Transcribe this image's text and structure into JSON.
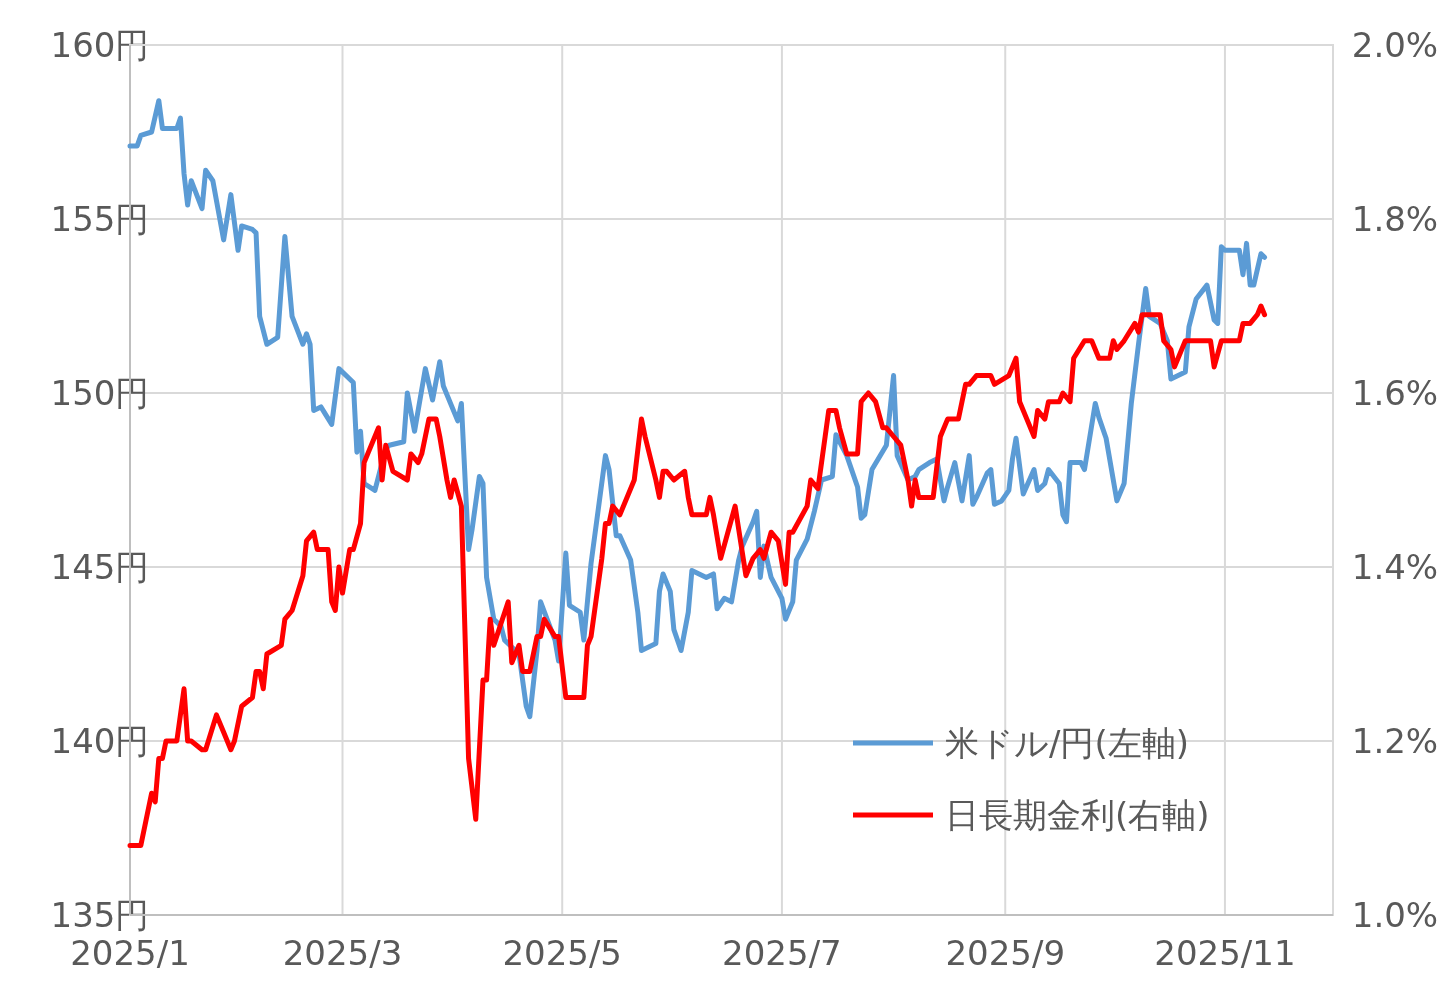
{
  "chart_data": {
    "type": "line",
    "xlim": [
      "2025-01-01",
      "2025-12-01"
    ],
    "xticks": [
      {
        "value": "2025-01-01",
        "label": "2025/1"
      },
      {
        "value": "2025-03-01",
        "label": "2025/3"
      },
      {
        "value": "2025-05-01",
        "label": "2025/5"
      },
      {
        "value": "2025-07-01",
        "label": "2025/7"
      },
      {
        "value": "2025-09-01",
        "label": "2025/9"
      },
      {
        "value": "2025-11-01",
        "label": "2025/11"
      }
    ],
    "ylim": [
      135,
      160
    ],
    "yticks": [
      {
        "value": 135,
        "label": "135円"
      },
      {
        "value": 140,
        "label": "140円"
      },
      {
        "value": 145,
        "label": "145円"
      },
      {
        "value": 150,
        "label": "150円"
      },
      {
        "value": 155,
        "label": "155円"
      },
      {
        "value": 160,
        "label": "160円"
      }
    ],
    "y2lim": [
      1.0,
      2.0
    ],
    "y2ticks": [
      {
        "value": 1.0,
        "label": "1.0%"
      },
      {
        "value": 1.2,
        "label": "1.2%"
      },
      {
        "value": 1.4,
        "label": "1.4%"
      },
      {
        "value": 1.6,
        "label": "1.6%"
      },
      {
        "value": 1.8,
        "label": "1.8%"
      },
      {
        "value": 2.0,
        "label": "2.0%"
      }
    ],
    "grid": true,
    "legend": "bottom right",
    "series": [
      {
        "name": "米ドル/円(左軸)",
        "color": "#5b9bd5",
        "x": [
          "2025-01-01",
          "2025-01-03",
          "2025-01-04",
          "2025-01-07",
          "2025-01-09",
          "2025-01-10",
          "2025-01-14",
          "2025-01-15",
          "2025-01-16",
          "2025-01-17",
          "2025-01-18",
          "2025-01-21",
          "2025-01-22",
          "2025-01-24",
          "2025-01-27",
          "2025-01-29",
          "2025-01-31",
          "2025-02-01",
          "2025-02-04",
          "2025-02-05",
          "2025-02-06",
          "2025-02-08",
          "2025-02-11",
          "2025-02-13",
          "2025-02-15",
          "2025-02-18",
          "2025-02-19",
          "2025-02-20",
          "2025-02-21",
          "2025-02-23",
          "2025-02-26",
          "2025-02-28",
          "2025-03-04",
          "2025-03-05",
          "2025-03-06",
          "2025-03-07",
          "2025-03-10",
          "2025-03-13",
          "2025-03-14",
          "2025-03-18",
          "2025-03-19",
          "2025-03-21",
          "2025-03-24",
          "2025-03-26",
          "2025-03-28",
          "2025-03-29",
          "2025-04-02",
          "2025-04-03",
          "2025-04-05",
          "2025-04-06",
          "2025-04-08",
          "2025-04-09",
          "2025-04-10",
          "2025-04-12",
          "2025-04-14",
          "2025-04-15",
          "2025-04-19",
          "2025-04-21",
          "2025-04-22",
          "2025-04-24",
          "2025-04-25",
          "2025-04-29",
          "2025-04-30",
          "2025-05-02",
          "2025-05-03",
          "2025-05-06",
          "2025-05-07",
          "2025-05-09",
          "2025-05-13",
          "2025-05-14",
          "2025-05-16",
          "2025-05-17",
          "2025-05-20",
          "2025-05-22",
          "2025-05-23",
          "2025-05-27",
          "2025-05-28",
          "2025-05-29",
          "2025-05-31",
          "2025-06-01",
          "2025-06-03",
          "2025-06-05",
          "2025-06-06",
          "2025-06-10",
          "2025-06-12",
          "2025-06-13",
          "2025-06-15",
          "2025-06-17",
          "2025-06-19",
          "2025-06-20",
          "2025-06-23",
          "2025-06-24",
          "2025-06-25",
          "2025-06-26",
          "2025-06-28",
          "2025-07-01",
          "2025-07-02",
          "2025-07-04",
          "2025-07-05",
          "2025-07-08",
          "2025-07-10",
          "2025-07-12",
          "2025-07-15",
          "2025-07-16",
          "2025-07-19",
          "2025-07-22",
          "2025-07-23",
          "2025-07-24",
          "2025-07-26",
          "2025-07-30",
          "2025-08-01",
          "2025-08-02",
          "2025-08-05",
          "2025-08-07",
          "2025-08-08",
          "2025-08-11",
          "2025-08-13",
          "2025-08-15",
          "2025-08-16",
          "2025-08-18",
          "2025-08-20",
          "2025-08-22",
          "2025-08-23",
          "2025-08-24",
          "2025-08-27",
          "2025-08-28",
          "2025-08-29",
          "2025-08-31",
          "2025-09-02",
          "2025-09-03",
          "2025-09-04",
          "2025-09-06",
          "2025-09-09",
          "2025-09-10",
          "2025-09-12",
          "2025-09-13",
          "2025-09-16",
          "2025-09-17",
          "2025-09-18",
          "2025-09-19",
          "2025-09-22",
          "2025-09-23",
          "2025-09-26",
          "2025-09-27",
          "2025-09-29",
          "2025-10-02",
          "2025-10-04",
          "2025-10-06",
          "2025-10-08",
          "2025-10-10",
          "2025-10-11",
          "2025-10-14",
          "2025-10-16",
          "2025-10-17",
          "2025-10-21",
          "2025-10-22",
          "2025-10-24",
          "2025-10-27",
          "2025-10-29",
          "2025-10-30",
          "2025-10-31",
          "2025-11-01",
          "2025-11-05",
          "2025-11-06",
          "2025-11-07",
          "2025-11-08",
          "2025-11-09",
          "2025-11-11",
          "2025-11-12"
        ],
        "values": [
          157.1,
          157.1,
          157.4,
          157.5,
          158.4,
          157.6,
          157.6,
          157.9,
          156.3,
          155.4,
          156.1,
          155.3,
          156.4,
          156.1,
          154.4,
          155.7,
          154.1,
          154.8,
          154.7,
          154.6,
          152.2,
          151.4,
          151.6,
          154.5,
          152.2,
          151.4,
          151.7,
          151.4,
          149.5,
          149.6,
          149.1,
          150.7,
          150.3,
          148.3,
          148.9,
          147.4,
          147.2,
          148.4,
          148.5,
          148.6,
          150.0,
          148.9,
          150.7,
          149.8,
          150.9,
          150.2,
          149.2,
          149.7,
          145.5,
          146.1,
          147.6,
          147.4,
          144.7,
          143.5,
          143.3,
          142.9,
          142.5,
          141.0,
          140.7,
          142.6,
          144.0,
          142.9,
          142.3,
          145.4,
          143.9,
          143.7,
          142.9,
          145.1,
          148.2,
          147.8,
          145.9,
          145.9,
          145.2,
          143.7,
          142.6,
          142.8,
          144.3,
          144.8,
          144.3,
          143.2,
          142.6,
          143.7,
          144.9,
          144.7,
          144.8,
          143.8,
          144.1,
          144.0,
          145.2,
          145.6,
          146.3,
          146.6,
          144.7,
          145.6,
          144.7,
          144.1,
          143.5,
          144.0,
          145.2,
          145.8,
          146.6,
          147.5,
          147.6,
          148.8,
          148.2,
          147.3,
          146.4,
          146.5,
          147.8,
          148.5,
          150.5,
          148.2,
          147.5,
          147.6,
          147.8,
          148.0,
          148.1,
          146.9,
          147.3,
          148.0,
          146.9,
          148.2,
          146.8,
          147.0,
          147.7,
          147.8,
          146.8,
          146.9,
          147.2,
          148.1,
          148.7,
          147.1,
          147.8,
          147.2,
          147.4,
          147.8,
          147.4,
          146.5,
          146.3,
          148.0,
          148.0,
          147.8,
          149.7,
          149.3,
          148.7,
          146.9,
          147.4,
          149.7,
          151.4,
          153.0,
          152.2,
          152.0,
          151.5,
          150.4,
          150.6,
          151.9,
          152.7,
          153.1,
          152.1,
          152.0,
          154.2,
          154.1,
          154.1,
          153.4,
          154.3,
          153.1,
          153.1,
          154.0,
          153.9
        ]
      },
      {
        "name": "日長期金利(右軸)",
        "color": "#ff0000",
        "axis": "y2",
        "x": [
          "2025-01-01",
          "2025-01-04",
          "2025-01-07",
          "2025-01-08",
          "2025-01-09",
          "2025-01-10",
          "2025-01-11",
          "2025-01-14",
          "2025-01-16",
          "2025-01-17",
          "2025-01-18",
          "2025-01-21",
          "2025-01-22",
          "2025-01-25",
          "2025-01-27",
          "2025-01-29",
          "2025-01-30",
          "2025-02-01",
          "2025-02-04",
          "2025-02-05",
          "2025-02-06",
          "2025-02-07",
          "2025-02-08",
          "2025-02-12",
          "2025-02-13",
          "2025-02-15",
          "2025-02-18",
          "2025-02-19",
          "2025-02-21",
          "2025-02-22",
          "2025-02-25",
          "2025-02-26",
          "2025-02-27",
          "2025-02-28",
          "2025-03-01",
          "2025-03-03",
          "2025-03-04",
          "2025-03-06",
          "2025-03-07",
          "2025-03-08",
          "2025-03-11",
          "2025-03-12",
          "2025-03-13",
          "2025-03-15",
          "2025-03-19",
          "2025-03-20",
          "2025-03-22",
          "2025-03-23",
          "2025-03-25",
          "2025-03-27",
          "2025-03-28",
          "2025-03-30",
          "2025-03-31",
          "2025-04-01",
          "2025-04-03",
          "2025-04-05",
          "2025-04-07",
          "2025-04-09",
          "2025-04-10",
          "2025-04-11",
          "2025-04-12",
          "2025-04-16",
          "2025-04-17",
          "2025-04-19",
          "2025-04-20",
          "2025-04-22",
          "2025-04-24",
          "2025-04-25",
          "2025-04-26",
          "2025-04-29",
          "2025-04-30",
          "2025-05-02",
          "2025-05-03",
          "2025-05-07",
          "2025-05-08",
          "2025-05-09",
          "2025-05-12",
          "2025-05-13",
          "2025-05-14",
          "2025-05-15",
          "2025-05-17",
          "2025-05-21",
          "2025-05-23",
          "2025-05-24",
          "2025-05-27",
          "2025-05-28",
          "2025-05-29",
          "2025-05-30",
          "2025-06-01",
          "2025-06-04",
          "2025-06-05",
          "2025-06-06",
          "2025-06-10",
          "2025-06-11",
          "2025-06-12",
          "2025-06-14",
          "2025-06-18",
          "2025-06-21",
          "2025-06-23",
          "2025-06-25",
          "2025-06-26",
          "2025-06-28",
          "2025-06-30",
          "2025-07-02",
          "2025-07-03",
          "2025-07-04",
          "2025-07-08",
          "2025-07-09",
          "2025-07-11",
          "2025-07-12",
          "2025-07-13",
          "2025-07-14",
          "2025-07-16",
          "2025-07-17",
          "2025-07-19",
          "2025-07-22",
          "2025-07-23",
          "2025-07-25",
          "2025-07-27",
          "2025-07-29",
          "2025-07-30",
          "2025-08-01",
          "2025-08-03",
          "2025-08-05",
          "2025-08-06",
          "2025-08-07",
          "2025-08-08",
          "2025-08-12",
          "2025-08-14",
          "2025-08-16",
          "2025-08-19",
          "2025-08-21",
          "2025-08-22",
          "2025-08-24",
          "2025-08-27",
          "2025-08-28",
          "2025-08-29",
          "2025-09-02",
          "2025-09-04",
          "2025-09-05",
          "2025-09-07",
          "2025-09-09",
          "2025-09-10",
          "2025-09-12",
          "2025-09-13",
          "2025-09-16",
          "2025-09-17",
          "2025-09-19",
          "2025-09-20",
          "2025-09-23",
          "2025-09-25",
          "2025-09-26",
          "2025-09-27",
          "2025-09-30",
          "2025-10-01",
          "2025-10-02",
          "2025-10-04",
          "2025-10-07",
          "2025-10-08",
          "2025-10-09",
          "2025-10-11",
          "2025-10-14",
          "2025-10-15",
          "2025-10-17",
          "2025-10-18",
          "2025-10-21",
          "2025-10-22",
          "2025-10-23",
          "2025-10-25",
          "2025-10-28",
          "2025-10-29",
          "2025-10-31",
          "2025-11-04",
          "2025-11-05",
          "2025-11-06",
          "2025-11-08",
          "2025-11-10",
          "2025-11-11",
          "2025-11-12"
        ],
        "values": [
          1.08,
          1.08,
          1.14,
          1.13,
          1.18,
          1.18,
          1.2,
          1.2,
          1.26,
          1.2,
          1.2,
          1.19,
          1.19,
          1.23,
          1.21,
          1.19,
          1.2,
          1.24,
          1.25,
          1.28,
          1.28,
          1.26,
          1.3,
          1.31,
          1.34,
          1.35,
          1.39,
          1.43,
          1.44,
          1.42,
          1.42,
          1.36,
          1.35,
          1.4,
          1.37,
          1.42,
          1.42,
          1.45,
          1.52,
          1.53,
          1.56,
          1.5,
          1.54,
          1.51,
          1.5,
          1.53,
          1.52,
          1.53,
          1.57,
          1.57,
          1.55,
          1.5,
          1.48,
          1.5,
          1.47,
          1.18,
          1.11,
          1.27,
          1.27,
          1.34,
          1.31,
          1.36,
          1.29,
          1.31,
          1.28,
          1.28,
          1.32,
          1.32,
          1.34,
          1.32,
          1.32,
          1.25,
          1.25,
          1.25,
          1.31,
          1.32,
          1.41,
          1.45,
          1.45,
          1.47,
          1.46,
          1.5,
          1.57,
          1.55,
          1.5,
          1.48,
          1.51,
          1.51,
          1.5,
          1.51,
          1.48,
          1.46,
          1.46,
          1.48,
          1.46,
          1.41,
          1.47,
          1.39,
          1.41,
          1.42,
          1.41,
          1.44,
          1.43,
          1.38,
          1.44,
          1.44,
          1.47,
          1.5,
          1.49,
          1.52,
          1.55,
          1.58,
          1.58,
          1.56,
          1.53,
          1.53,
          1.59,
          1.6,
          1.59,
          1.56,
          1.56,
          1.55,
          1.54,
          1.5,
          1.47,
          1.5,
          1.48,
          1.48,
          1.55,
          1.57,
          1.57,
          1.61,
          1.61,
          1.62,
          1.62,
          1.62,
          1.61,
          1.62,
          1.64,
          1.59,
          1.57,
          1.55,
          1.58,
          1.57,
          1.59,
          1.59,
          1.6,
          1.59,
          1.64,
          1.66,
          1.66,
          1.65,
          1.64,
          1.64,
          1.66,
          1.65,
          1.66,
          1.68,
          1.67,
          1.69,
          1.69,
          1.69,
          1.66,
          1.65,
          1.63,
          1.66,
          1.66,
          1.66,
          1.66,
          1.66,
          1.63,
          1.66,
          1.66,
          1.66,
          1.68,
          1.68,
          1.69,
          1.7,
          1.69
        ]
      }
    ]
  }
}
